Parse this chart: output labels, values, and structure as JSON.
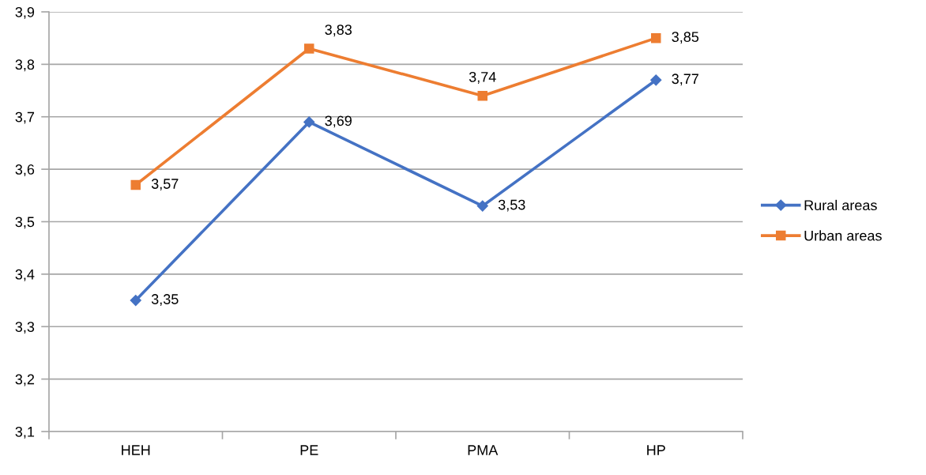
{
  "chart_data": {
    "type": "line",
    "categories": [
      "HEH",
      "PE",
      "PMA",
      "HP"
    ],
    "series": [
      {
        "name": "Rural areas",
        "color": "#4472c4",
        "marker": "diamond",
        "values": [
          3.35,
          3.69,
          3.53,
          3.77
        ],
        "value_labels": [
          "3,35",
          "3,69",
          "3,53",
          "3,77"
        ]
      },
      {
        "name": "Urban areas",
        "color": "#ed7d31",
        "marker": "square",
        "values": [
          3.57,
          3.83,
          3.74,
          3.85
        ],
        "value_labels": [
          "3,57",
          "3,83",
          "3,74",
          "3,85"
        ]
      }
    ],
    "ylim": [
      3.1,
      3.9
    ],
    "yticks": [
      {
        "value": 3.1,
        "label": "3,1"
      },
      {
        "value": 3.2,
        "label": "3,2"
      },
      {
        "value": 3.3,
        "label": "3,3"
      },
      {
        "value": 3.4,
        "label": "3,4"
      },
      {
        "value": 3.5,
        "label": "3,5"
      },
      {
        "value": 3.6,
        "label": "3,6"
      },
      {
        "value": 3.7,
        "label": "3,7"
      },
      {
        "value": 3.8,
        "label": "3,8"
      },
      {
        "value": 3.9,
        "label": "3,9"
      }
    ],
    "grid": "y",
    "legend": "right",
    "line_style": "solid"
  }
}
